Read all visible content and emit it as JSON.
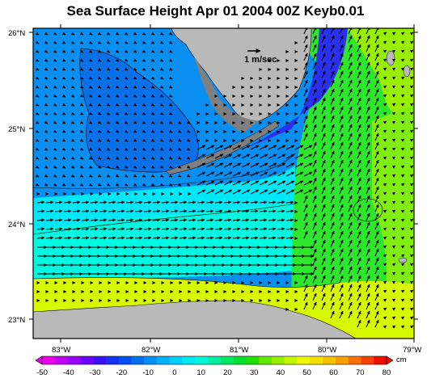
{
  "title": "Sea Surface Height Apr 01 2004 00Z  Keyb0.01",
  "reference_vector_label": "1 m/sec",
  "lat_labels": [
    "26°N",
    "25°N",
    "24°N",
    "23°N"
  ],
  "lon_labels": [
    "83°W",
    "82°W",
    "81°W",
    "80°W",
    "79°W"
  ],
  "colorbar": {
    "unit": "cm",
    "ticks": [
      "-50",
      "-40",
      "-30",
      "-20",
      "-10",
      "0",
      "10",
      "20",
      "30",
      "40",
      "50",
      "60",
      "70",
      "80"
    ],
    "colors": [
      "#e800e8",
      "#c000f0",
      "#9a00f5",
      "#6a00f8",
      "#3a10f8",
      "#1430f0",
      "#0050f0",
      "#0070f0",
      "#0090f8",
      "#00b0f8",
      "#00d0f8",
      "#00e8f0",
      "#00f8d8",
      "#00f0a0",
      "#00e860",
      "#00e030",
      "#20e000",
      "#60e800",
      "#98f000",
      "#c8f800",
      "#f0f800",
      "#f8e000",
      "#f8c000",
      "#f8a000",
      "#f87000",
      "#f84000",
      "#f01000"
    ]
  },
  "colors": {
    "land": "#b9b9b9",
    "coast_shelf": "#7f7f7f"
  }
}
